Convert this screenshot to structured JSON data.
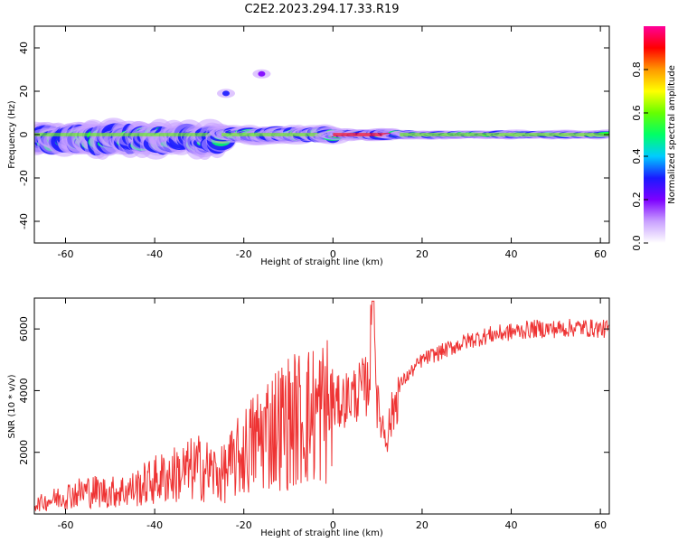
{
  "title": "C2E2.2023.294.17.33.R19",
  "chart_data": [
    {
      "type": "heatmap",
      "xlabel": "Height of straight line (km)",
      "ylabel": "Frequency (Hz)",
      "xlim": [
        -67,
        62
      ],
      "ylim": [
        -50,
        50
      ],
      "x_ticks": [
        -60,
        -40,
        -20,
        0,
        20,
        40,
        60
      ],
      "y_ticks": [
        -40,
        -20,
        0,
        20,
        40
      ],
      "grid": false,
      "colorbar": {
        "label": "Normalized spectral amplitude",
        "range": [
          0,
          1
        ],
        "ticks": [
          0.0,
          0.2,
          0.4,
          0.6,
          0.8
        ],
        "colors": [
          "#ffffff",
          "#c9a0ff",
          "#7d00ff",
          "#1a1aff",
          "#00ccff",
          "#00ff66",
          "#66ff00",
          "#ffff00",
          "#ff9900",
          "#ff0000",
          "#ff0099"
        ]
      },
      "features": [
        {
          "x_range": [
            -67,
            -25
          ],
          "freq_center": -2,
          "freq_spread": 12,
          "amplitude": 0.6
        },
        {
          "x_range": [
            -25,
            0
          ],
          "freq_center": 0,
          "freq_spread": 6,
          "amplitude": 0.6
        },
        {
          "x_range": [
            0,
            15
          ],
          "freq_center": 0,
          "freq_spread": 4,
          "amplitude": 0.95
        },
        {
          "x_range": [
            15,
            62
          ],
          "freq_center": 0,
          "freq_spread": 3,
          "amplitude": 0.55
        },
        {
          "x": -16,
          "freq": 28,
          "amplitude": 0.25
        },
        {
          "x": -24,
          "freq": 19,
          "amplitude": 0.3
        }
      ]
    },
    {
      "type": "line",
      "xlabel": "Height of straight line (km)",
      "ylabel": "SNR (10 * v/v)",
      "xlim": [
        -67,
        62
      ],
      "ylim": [
        0,
        7000
      ],
      "x_ticks": [
        -60,
        -40,
        -20,
        0,
        20,
        40,
        60
      ],
      "y_ticks": [
        2000,
        4000,
        6000
      ],
      "grid": false,
      "series": [
        {
          "color": "#ee3333",
          "x": [
            -67,
            -60,
            -55,
            -50,
            -45,
            -40,
            -35,
            -30,
            -25,
            -20,
            -15,
            -10,
            -5,
            0,
            5,
            8,
            9,
            10,
            12,
            15,
            20,
            25,
            30,
            35,
            40,
            45,
            50,
            55,
            60,
            62
          ],
          "y": [
            300,
            600,
            750,
            700,
            800,
            1100,
            1300,
            1500,
            1250,
            2000,
            2700,
            3000,
            3200,
            3500,
            3900,
            4200,
            6900,
            3400,
            2500,
            4200,
            5000,
            5300,
            5600,
            5800,
            5900,
            6000,
            6000,
            6050,
            6000,
            6000
          ]
        }
      ]
    }
  ]
}
